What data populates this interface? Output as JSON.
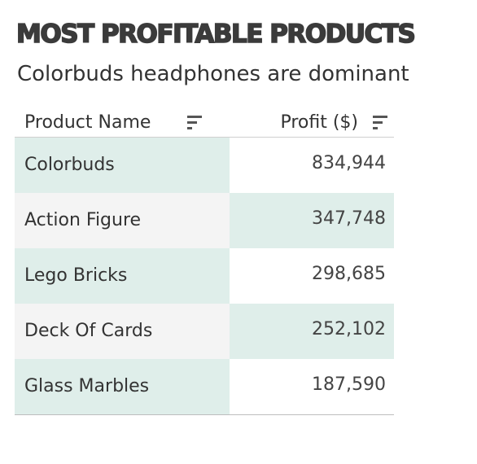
{
  "chart_data": {
    "type": "table",
    "title": "MOST PROFITABLE PRODUCTS",
    "subtitle": "Colorbuds headphones are dominant",
    "columns": [
      "Product Name",
      "Profit ($)"
    ],
    "categories": [
      "Colorbuds",
      "Action Figure",
      "Lego Bricks",
      "Deck Of Cards",
      "Glass Marbles"
    ],
    "values": [
      834944,
      347748,
      298685,
      252102,
      187590
    ],
    "values_display": [
      "834,944",
      "347,748",
      "298,685",
      "252,102",
      "187,590"
    ]
  },
  "colors": {
    "row_highlight": "#dfeeea",
    "row_alt": "#f4f4f4",
    "text": "#333333"
  },
  "icons": {
    "sort": "sort-icon"
  }
}
